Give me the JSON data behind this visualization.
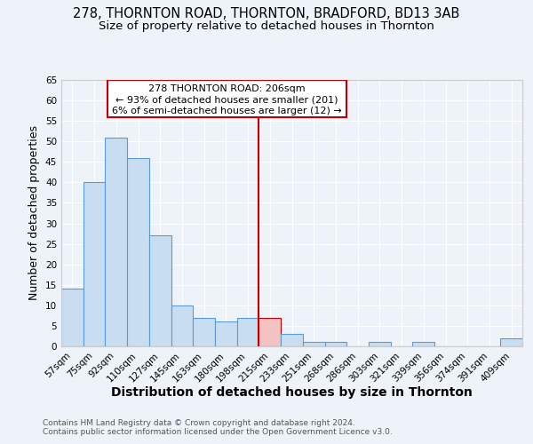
{
  "title": "278, THORNTON ROAD, THORNTON, BRADFORD, BD13 3AB",
  "subtitle": "Size of property relative to detached houses in Thornton",
  "xlabel": "Distribution of detached houses by size in Thornton",
  "ylabel": "Number of detached properties",
  "bar_labels": [
    "57sqm",
    "75sqm",
    "92sqm",
    "110sqm",
    "127sqm",
    "145sqm",
    "163sqm",
    "180sqm",
    "198sqm",
    "215sqm",
    "233sqm",
    "251sqm",
    "268sqm",
    "286sqm",
    "303sqm",
    "321sqm",
    "339sqm",
    "356sqm",
    "374sqm",
    "391sqm",
    "409sqm"
  ],
  "bar_values": [
    14,
    40,
    51,
    46,
    27,
    10,
    7,
    6,
    7,
    7,
    3,
    1,
    1,
    0,
    1,
    0,
    1,
    0,
    0,
    0,
    2
  ],
  "bar_color": "#c9ddf0",
  "bar_edgecolor": "#5b9bd5",
  "highlight_bar_index": 9,
  "highlight_bar_color": "#f4c2c2",
  "highlight_bar_edgecolor": "#c00000",
  "vline_x": 8.5,
  "vline_color": "#c00000",
  "ylim": [
    0,
    65
  ],
  "yticks": [
    0,
    5,
    10,
    15,
    20,
    25,
    30,
    35,
    40,
    45,
    50,
    55,
    60,
    65
  ],
  "annotation_title": "278 THORNTON ROAD: 206sqm",
  "annotation_line2": "← 93% of detached houses are smaller (201)",
  "annotation_line3": "6% of semi-detached houses are larger (12) →",
  "annotation_box_color": "#c00000",
  "footer_line1": "Contains HM Land Registry data © Crown copyright and database right 2024.",
  "footer_line2": "Contains public sector information licensed under the Open Government Licence v3.0.",
  "background_color": "#eef2f9",
  "grid_color": "#d8dce8",
  "title_fontsize": 10.5,
  "subtitle_fontsize": 9.5,
  "axis_label_fontsize": 9,
  "tick_fontsize": 7.5,
  "footer_fontsize": 6.5
}
